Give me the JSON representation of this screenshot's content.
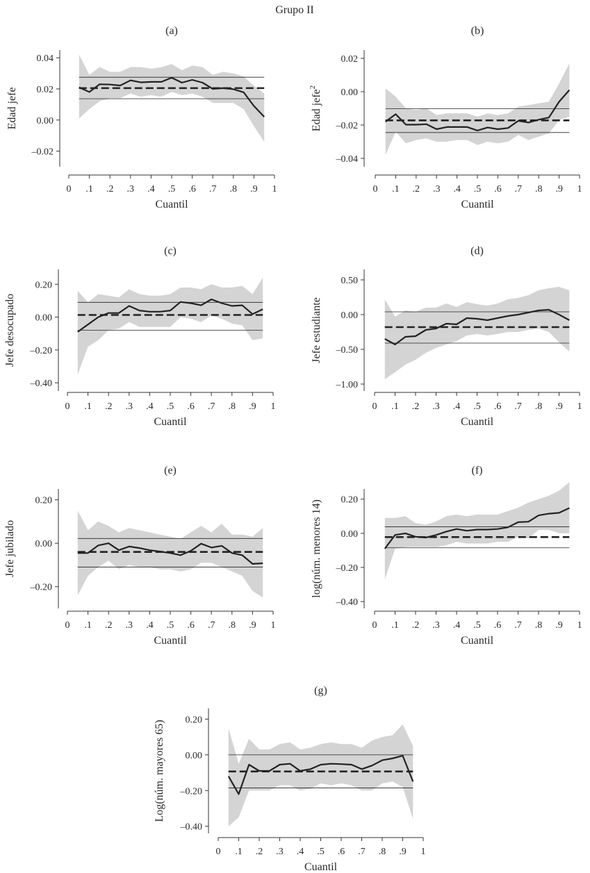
{
  "figure_title": "Grupo II",
  "colors": {
    "band": "#d4d4d4",
    "line": "#222222",
    "axis": "#333333"
  },
  "chart_data": [
    {
      "type": "line",
      "panel_label": "(a)",
      "ylabel": "Edad jefe",
      "xlabel": "Cuantil",
      "xlim": [
        0,
        1
      ],
      "ylim": [
        -0.03,
        0.045
      ],
      "xticks": [
        0,
        0.1,
        0.2,
        0.3,
        0.4,
        0.5,
        0.6,
        0.7,
        0.8,
        0.9,
        1
      ],
      "xtick_labels": [
        "0",
        ".1",
        ".2",
        ".3",
        ".4",
        ".5",
        ".6",
        ".7",
        ".8",
        ".9",
        "1"
      ],
      "yticks": [
        -0.02,
        0,
        0.02,
        0.04
      ],
      "ytick_labels": [
        "–0.02",
        "0.00",
        "0.02",
        "0.04"
      ],
      "x": [
        0.05,
        0.1,
        0.15,
        0.2,
        0.25,
        0.3,
        0.35,
        0.4,
        0.45,
        0.5,
        0.55,
        0.6,
        0.65,
        0.7,
        0.75,
        0.8,
        0.85,
        0.9,
        0.95
      ],
      "estimate": [
        0.021,
        0.018,
        0.023,
        0.0228,
        0.0222,
        0.0255,
        0.0242,
        0.0245,
        0.0245,
        0.0272,
        0.024,
        0.0258,
        0.024,
        0.02,
        0.0205,
        0.0198,
        0.0178,
        0.009,
        0.002
      ],
      "ci_upper": [
        0.042,
        0.029,
        0.034,
        0.031,
        0.031,
        0.034,
        0.034,
        0.033,
        0.034,
        0.036,
        0.032,
        0.035,
        0.034,
        0.029,
        0.031,
        0.03,
        0.028,
        0.022,
        0.017
      ],
      "ci_lower": [
        0.001,
        0.007,
        0.012,
        0.014,
        0.014,
        0.017,
        0.015,
        0.016,
        0.015,
        0.018,
        0.016,
        0.017,
        0.015,
        0.011,
        0.011,
        0.011,
        0.007,
        -0.004,
        -0.014
      ],
      "ols": 0.0205,
      "ols_ci_upper": 0.0275,
      "ols_ci_lower": 0.0137
    },
    {
      "type": "line",
      "panel_label": "(b)",
      "ylabel": "Edad jefe",
      "ylabel_superscript": "2",
      "xlabel": "Cuantil",
      "xlim": [
        0,
        1
      ],
      "ylim": [
        -0.045,
        0.025
      ],
      "xticks": [
        0,
        0.1,
        0.2,
        0.3,
        0.4,
        0.5,
        0.6,
        0.7,
        0.8,
        0.9,
        1
      ],
      "xtick_labels": [
        "0",
        ".1",
        ".2",
        ".3",
        ".4",
        ".5",
        ".6",
        ".7",
        ".8",
        ".9",
        "1"
      ],
      "yticks": [
        -0.04,
        -0.02,
        0,
        0.02
      ],
      "ytick_labels": [
        "–0.04",
        "–0.02",
        "0.00",
        "0.02"
      ],
      "x": [
        0.05,
        0.1,
        0.15,
        0.2,
        0.25,
        0.3,
        0.35,
        0.4,
        0.45,
        0.5,
        0.55,
        0.6,
        0.65,
        0.7,
        0.75,
        0.8,
        0.85,
        0.9,
        0.95
      ],
      "estimate": [
        -0.018,
        -0.0135,
        -0.0198,
        -0.0198,
        -0.0195,
        -0.0225,
        -0.0212,
        -0.0212,
        -0.0212,
        -0.0233,
        -0.0215,
        -0.0225,
        -0.0218,
        -0.0175,
        -0.0185,
        -0.0168,
        -0.0155,
        -0.006,
        0.001
      ],
      "ci_upper": [
        0.002,
        -0.003,
        -0.01,
        -0.011,
        -0.01,
        -0.014,
        -0.013,
        -0.013,
        -0.013,
        -0.015,
        -0.013,
        -0.014,
        -0.013,
        -0.009,
        -0.008,
        -0.007,
        -0.006,
        0.005,
        0.017
      ],
      "ci_lower": [
        -0.038,
        -0.024,
        -0.031,
        -0.029,
        -0.028,
        -0.03,
        -0.03,
        -0.029,
        -0.029,
        -0.032,
        -0.03,
        -0.031,
        -0.03,
        -0.026,
        -0.029,
        -0.027,
        -0.025,
        -0.017,
        -0.015
      ],
      "ols": -0.0172,
      "ols_ci_upper": -0.0102,
      "ols_ci_lower": -0.0245
    },
    {
      "type": "line",
      "panel_label": "(c)",
      "ylabel": "Jefe desocupado",
      "xlabel": "Cuantil",
      "xlim": [
        0,
        1
      ],
      "ylim": [
        -0.45,
        0.29
      ],
      "xticks": [
        0,
        0.1,
        0.2,
        0.3,
        0.4,
        0.5,
        0.6,
        0.7,
        0.8,
        0.9,
        1
      ],
      "xtick_labels": [
        "0",
        ".1",
        ".2",
        ".3",
        ".4",
        ".5",
        ".6",
        ".7",
        ".8",
        ".9",
        "1"
      ],
      "yticks": [
        -0.4,
        -0.2,
        0,
        0.2
      ],
      "ytick_labels": [
        "–0.40",
        "–0.20",
        "0.00",
        "0.20"
      ],
      "x": [
        0.05,
        0.1,
        0.15,
        0.2,
        0.25,
        0.3,
        0.35,
        0.4,
        0.45,
        0.5,
        0.55,
        0.6,
        0.65,
        0.7,
        0.75,
        0.8,
        0.85,
        0.9,
        0.95
      ],
      "estimate": [
        -0.09,
        -0.045,
        0.0,
        0.025,
        0.025,
        0.068,
        0.04,
        0.033,
        0.033,
        0.04,
        0.092,
        0.085,
        0.072,
        0.108,
        0.085,
        0.068,
        0.072,
        0.018,
        0.048
      ],
      "ci_upper": [
        0.16,
        0.09,
        0.14,
        0.13,
        0.12,
        0.17,
        0.14,
        0.13,
        0.13,
        0.14,
        0.18,
        0.18,
        0.17,
        0.2,
        0.18,
        0.18,
        0.19,
        0.14,
        0.24
      ],
      "ci_lower": [
        -0.35,
        -0.18,
        -0.14,
        -0.08,
        -0.07,
        -0.03,
        -0.06,
        -0.06,
        -0.06,
        -0.06,
        0.0,
        -0.01,
        -0.03,
        0.01,
        -0.01,
        -0.04,
        -0.05,
        -0.14,
        -0.13
      ],
      "ols": 0.013,
      "ols_ci_upper": 0.09,
      "ols_ci_lower": -0.08
    },
    {
      "type": "line",
      "panel_label": "(d)",
      "ylabel": "Jefe estudiante",
      "xlabel": "Cuantil",
      "xlim": [
        0,
        1
      ],
      "ylim": [
        -1.1,
        0.65
      ],
      "xticks": [
        0,
        0.1,
        0.2,
        0.3,
        0.4,
        0.5,
        0.6,
        0.7,
        0.8,
        0.9,
        1
      ],
      "xtick_labels": [
        "0",
        ".1",
        ".2",
        ".3",
        ".4",
        ".5",
        ".6",
        ".7",
        ".8",
        ".9",
        "1"
      ],
      "yticks": [
        -1,
        -0.5,
        0,
        0.5
      ],
      "ytick_labels": [
        "–1.00",
        "–0.50",
        "0.00",
        "0.50"
      ],
      "x": [
        0.05,
        0.1,
        0.15,
        0.2,
        0.25,
        0.3,
        0.35,
        0.4,
        0.45,
        0.5,
        0.55,
        0.6,
        0.65,
        0.7,
        0.75,
        0.8,
        0.85,
        0.9,
        0.95
      ],
      "estimate": [
        -0.35,
        -0.43,
        -0.32,
        -0.31,
        -0.22,
        -0.2,
        -0.13,
        -0.14,
        -0.05,
        -0.06,
        -0.08,
        -0.05,
        -0.02,
        0.0,
        0.03,
        0.06,
        0.07,
        0.0,
        -0.08
      ],
      "ci_upper": [
        0.22,
        -0.03,
        0.06,
        0.04,
        0.1,
        0.1,
        0.16,
        0.11,
        0.18,
        0.15,
        0.13,
        0.16,
        0.22,
        0.24,
        0.28,
        0.35,
        0.38,
        0.4,
        0.35
      ],
      "ci_lower": [
        -0.93,
        -0.83,
        -0.72,
        -0.65,
        -0.55,
        -0.48,
        -0.43,
        -0.38,
        -0.3,
        -0.28,
        -0.3,
        -0.28,
        -0.25,
        -0.25,
        -0.22,
        -0.2,
        -0.25,
        -0.4,
        -0.53
      ],
      "ols": -0.18,
      "ols_ci_upper": 0.04,
      "ols_ci_lower": -0.41
    },
    {
      "type": "line",
      "panel_label": "(e)",
      "ylabel": "Jefe jubilado",
      "xlabel": "Cuantil",
      "xlim": [
        0,
        1
      ],
      "ylim": [
        -0.3,
        0.25
      ],
      "xticks": [
        0,
        0.1,
        0.2,
        0.3,
        0.4,
        0.5,
        0.6,
        0.7,
        0.8,
        0.9,
        1
      ],
      "xtick_labels": [
        "0",
        ".1",
        ".2",
        ".3",
        ".4",
        ".5",
        ".6",
        ".7",
        ".8",
        ".9",
        "1"
      ],
      "yticks": [
        -0.2,
        0,
        0.2
      ],
      "ytick_labels": [
        "–0.20",
        "0.00",
        "0.20"
      ],
      "x": [
        0.05,
        0.1,
        0.15,
        0.2,
        0.25,
        0.3,
        0.35,
        0.4,
        0.45,
        0.5,
        0.55,
        0.6,
        0.65,
        0.7,
        0.75,
        0.8,
        0.85,
        0.9,
        0.95
      ],
      "estimate": [
        -0.045,
        -0.045,
        -0.01,
        0.0,
        -0.032,
        -0.015,
        -0.022,
        -0.032,
        -0.038,
        -0.045,
        -0.055,
        -0.035,
        -0.002,
        -0.02,
        -0.012,
        -0.045,
        -0.055,
        -0.095,
        -0.092
      ],
      "ci_upper": [
        0.15,
        0.06,
        0.1,
        0.08,
        0.05,
        0.07,
        0.06,
        0.05,
        0.04,
        0.03,
        0.02,
        0.05,
        0.08,
        0.05,
        0.09,
        0.04,
        0.04,
        0.03,
        0.07
      ],
      "ci_lower": [
        -0.24,
        -0.15,
        -0.11,
        -0.08,
        -0.12,
        -0.1,
        -0.11,
        -0.11,
        -0.12,
        -0.12,
        -0.13,
        -0.12,
        -0.09,
        -0.09,
        -0.11,
        -0.13,
        -0.15,
        -0.22,
        -0.25
      ],
      "ols": -0.04,
      "ols_ci_upper": 0.022,
      "ols_ci_lower": -0.11
    },
    {
      "type": "line",
      "panel_label": "(f)",
      "ylabel": "log(núm. menores 14)",
      "xlabel": "Cuantil",
      "xlim": [
        0,
        1
      ],
      "ylim": [
        -0.44,
        0.26
      ],
      "xticks": [
        0,
        0.1,
        0.2,
        0.3,
        0.4,
        0.5,
        0.6,
        0.7,
        0.8,
        0.9,
        1
      ],
      "xtick_labels": [
        "0",
        ".1",
        ".2",
        ".3",
        ".4",
        ".5",
        ".6",
        ".7",
        ".8",
        ".9",
        "1"
      ],
      "yticks": [
        -0.4,
        -0.2,
        0,
        0.2
      ],
      "ytick_labels": [
        "–0.40",
        "–0.20",
        "0.00",
        "0.20"
      ],
      "x": [
        0.05,
        0.1,
        0.15,
        0.2,
        0.25,
        0.3,
        0.35,
        0.4,
        0.45,
        0.5,
        0.55,
        0.6,
        0.65,
        0.7,
        0.75,
        0.8,
        0.85,
        0.9,
        0.95
      ],
      "estimate": [
        -0.09,
        -0.01,
        0.0,
        -0.02,
        -0.025,
        -0.01,
        0.01,
        0.025,
        0.015,
        0.022,
        0.022,
        0.025,
        0.035,
        0.065,
        0.068,
        0.105,
        0.115,
        0.12,
        0.148
      ],
      "ci_upper": [
        0.09,
        0.09,
        0.1,
        0.06,
        0.05,
        0.07,
        0.1,
        0.11,
        0.1,
        0.11,
        0.11,
        0.11,
        0.13,
        0.15,
        0.18,
        0.2,
        0.22,
        0.25,
        0.3
      ],
      "ci_lower": [
        -0.27,
        -0.09,
        -0.08,
        -0.08,
        -0.08,
        -0.08,
        -0.07,
        -0.05,
        -0.06,
        -0.06,
        -0.06,
        -0.05,
        -0.05,
        -0.02,
        -0.03,
        0.02,
        0.02,
        0.0,
        0.0
      ],
      "ols": -0.022,
      "ols_ci_upper": 0.038,
      "ols_ci_lower": -0.085
    },
    {
      "type": "line",
      "panel_label": "(g)",
      "ylabel": "Log(núm. mayores 65)",
      "xlabel": "Cuantil",
      "xlim": [
        0,
        1
      ],
      "ylim": [
        -0.44,
        0.26
      ],
      "xticks": [
        0,
        0.1,
        0.2,
        0.3,
        0.4,
        0.5,
        0.6,
        0.7,
        0.8,
        0.9,
        1
      ],
      "xtick_labels": [
        "0",
        ".1",
        ".2",
        ".3",
        ".4",
        ".5",
        ".6",
        ".7",
        ".8",
        ".9",
        "1"
      ],
      "yticks": [
        -0.4,
        -0.2,
        0,
        0.2
      ],
      "ytick_labels": [
        "–0.40",
        "–0.20",
        "0.00",
        "0.20"
      ],
      "x": [
        0.05,
        0.1,
        0.15,
        0.2,
        0.25,
        0.3,
        0.35,
        0.4,
        0.45,
        0.5,
        0.55,
        0.6,
        0.65,
        0.7,
        0.75,
        0.8,
        0.85,
        0.9,
        0.95
      ],
      "estimate": [
        -0.12,
        -0.22,
        -0.055,
        -0.09,
        -0.09,
        -0.055,
        -0.05,
        -0.09,
        -0.08,
        -0.055,
        -0.05,
        -0.052,
        -0.055,
        -0.08,
        -0.06,
        -0.03,
        -0.02,
        -0.005,
        -0.15
      ],
      "ci_upper": [
        0.15,
        -0.05,
        0.09,
        0.03,
        0.03,
        0.06,
        0.07,
        0.03,
        0.04,
        0.06,
        0.07,
        0.06,
        0.06,
        0.04,
        0.08,
        0.1,
        0.11,
        0.17,
        0.05
      ],
      "ci_lower": [
        -0.4,
        -0.35,
        -0.2,
        -0.2,
        -0.2,
        -0.17,
        -0.17,
        -0.2,
        -0.19,
        -0.16,
        -0.17,
        -0.16,
        -0.17,
        -0.2,
        -0.2,
        -0.16,
        -0.15,
        -0.18,
        -0.36
      ],
      "ols": -0.093,
      "ols_ci_upper": 0.0,
      "ols_ci_lower": -0.185
    }
  ]
}
